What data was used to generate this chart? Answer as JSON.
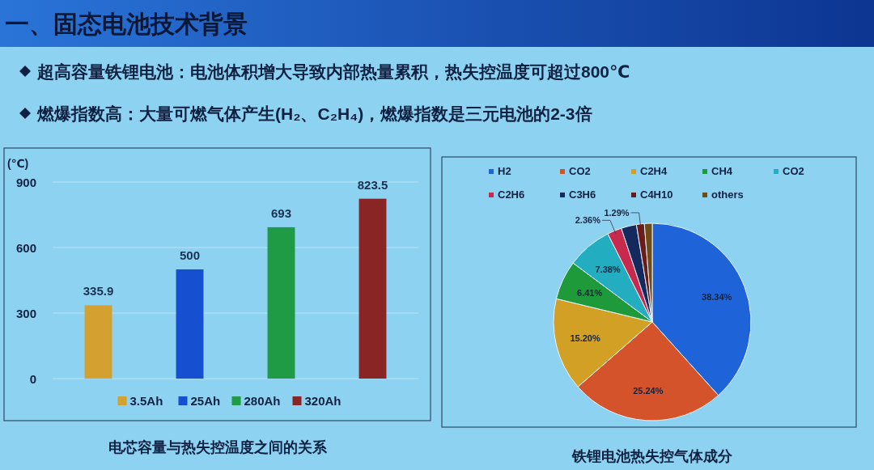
{
  "chart_data": [
    {
      "type": "other",
      "title": "一、固态电池技术背景",
      "annotations": [
        "超高容量铁锂电池：电池体积增大导致内部热量累积，热失控温度可超过800℃",
        "燃爆指数高：大量可燃气体产生(H₂、C₂H₄)，燃爆指数是三元电池的2-3倍"
      ]
    },
    {
      "type": "bar",
      "title": "电芯容量与热失控温度之间的关系",
      "ylabel": "(℃)",
      "categories": [
        null
      ],
      "series": [
        {
          "name": "3.5Ah",
          "color": "#d4a030",
          "values": [
            335.9
          ]
        },
        {
          "name": "25Ah",
          "color": "#1650d0",
          "values": [
            500
          ]
        },
        {
          "name": "280Ah",
          "color": "#1f9a45",
          "values": [
            693
          ]
        },
        {
          "name": "320Ah",
          "color": "#8a2525",
          "values": [
            823.5
          ]
        }
      ],
      "ylim": [
        0,
        900
      ],
      "yticks": [
        0,
        300,
        600,
        900
      ],
      "grid": "y",
      "legend": "bottom",
      "data_labels": true
    },
    {
      "type": "pie",
      "title": "铁锂电池热失控气体成分",
      "categories": [
        "H2",
        "CO2",
        "C2H4",
        "CH4",
        "CO2",
        "C2H6",
        "C3H6",
        "C4H10",
        "others"
      ],
      "values": [
        38.34,
        25.24,
        15.2,
        6.41,
        7.38,
        2.36,
        2.5,
        1.29,
        1.28
      ],
      "colors": [
        "#1f63d8",
        "#d4532b",
        "#d2a024",
        "#1f9a3a",
        "#22adc0",
        "#c72a4c",
        "#142a5e",
        "#6a1c1c",
        "#6e4c14"
      ],
      "value_labels": [
        "38.34%",
        "25.24%",
        "15.20%",
        "6.41%",
        "7.38%",
        "2.36%",
        null,
        "1.29%",
        null
      ],
      "legend": "top"
    }
  ]
}
